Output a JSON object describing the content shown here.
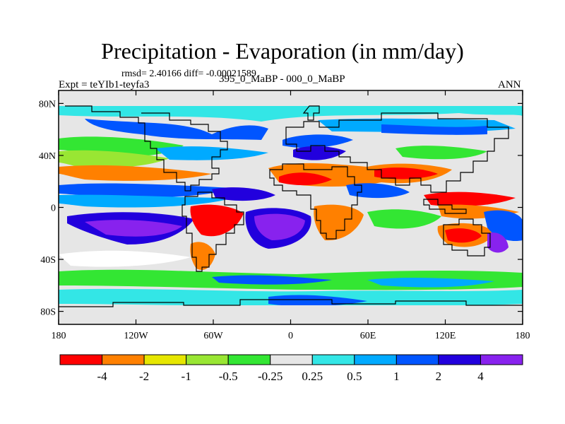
{
  "title": "Precipitation - Evaporation (in mm/day)",
  "stats_line": "rmsd= 2.40166 diff= -0.00021589",
  "experiment_label": "Expt = teYIb1-teyfa3",
  "period_label": "395_0_MaBP - 000_0_MaBP",
  "season_label": "ANN",
  "map": {
    "lat_ticks": [
      {
        "lat": 80,
        "label": "80N"
      },
      {
        "lat": 40,
        "label": "40N"
      },
      {
        "lat": 0,
        "label": "0"
      },
      {
        "lat": -40,
        "label": "40S"
      },
      {
        "lat": -80,
        "label": "80S"
      }
    ],
    "lon_ticks": [
      {
        "lon": -180,
        "label": "180"
      },
      {
        "lon": -120,
        "label": "120W"
      },
      {
        "lon": -60,
        "label": "60W"
      },
      {
        "lon": 0,
        "label": "0"
      },
      {
        "lon": 60,
        "label": "60E"
      },
      {
        "lon": 120,
        "label": "120E"
      },
      {
        "lon": 180,
        "label": "180"
      }
    ]
  },
  "colorbar": {
    "colors": [
      "#ff0000",
      "#ff8000",
      "#e6e600",
      "#99e633",
      "#33e633",
      "#e6e6e6",
      "#33e6e6",
      "#00aaff",
      "#0055ff",
      "#2200dd",
      "#8822ee"
    ],
    "labels": [
      "-4",
      "-2",
      "-1",
      "-0.5",
      "-0.25",
      "0.25",
      "0.5",
      "1",
      "2",
      "4"
    ]
  }
}
